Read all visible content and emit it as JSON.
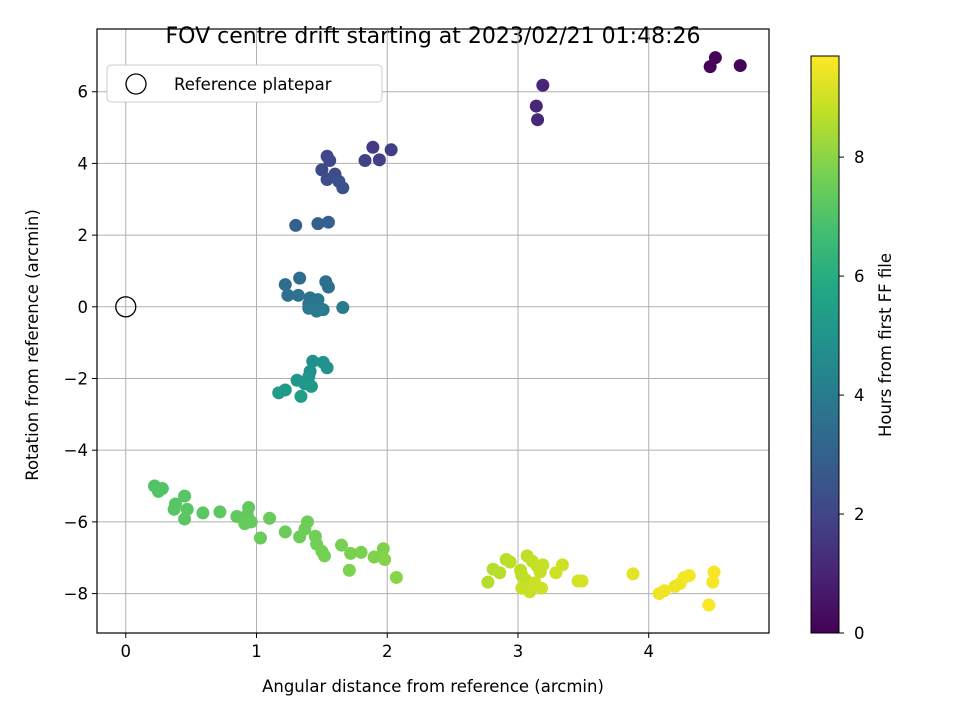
{
  "chart_data": {
    "type": "scatter",
    "title": "FOV centre drift starting at 2023/02/21 01:48:26",
    "xlabel": "Angular distance from reference (arcmin)",
    "ylabel": "Rotation from reference (arcmin)",
    "xlim": [
      -0.22,
      4.92
    ],
    "ylim": [
      -9.1,
      7.75
    ],
    "xticks": [
      0,
      1,
      2,
      3,
      4
    ],
    "yticks": [
      -8,
      -6,
      -4,
      -2,
      0,
      2,
      4,
      6
    ],
    "grid": true,
    "legend": {
      "placement": "top-left",
      "entries": [
        "Reference platepar"
      ]
    },
    "colorbar": {
      "label": "Hours from first FF file",
      "ticks": [
        0,
        2,
        4,
        6,
        8
      ],
      "range": [
        0,
        9.7
      ],
      "colormap": "viridis"
    },
    "reference_point": {
      "x": 0,
      "y": 0
    },
    "points": [
      {
        "x": 4.47,
        "y": 6.7,
        "h": 0.05
      },
      {
        "x": 4.51,
        "y": 6.95,
        "h": 0.08
      },
      {
        "x": 4.7,
        "y": 6.73,
        "h": 0.12
      },
      {
        "x": 3.19,
        "y": 6.18,
        "h": 1.0
      },
      {
        "x": 3.14,
        "y": 5.6,
        "h": 1.05
      },
      {
        "x": 3.15,
        "y": 5.22,
        "h": 1.1
      },
      {
        "x": 1.89,
        "y": 4.45,
        "h": 1.7
      },
      {
        "x": 2.03,
        "y": 4.38,
        "h": 1.75
      },
      {
        "x": 1.94,
        "y": 4.1,
        "h": 1.8
      },
      {
        "x": 1.83,
        "y": 4.08,
        "h": 1.85
      },
      {
        "x": 1.54,
        "y": 4.2,
        "h": 2.05
      },
      {
        "x": 1.56,
        "y": 4.08,
        "h": 2.1
      },
      {
        "x": 1.5,
        "y": 3.82,
        "h": 2.15
      },
      {
        "x": 1.6,
        "y": 3.7,
        "h": 2.2
      },
      {
        "x": 1.54,
        "y": 3.55,
        "h": 2.3
      },
      {
        "x": 1.63,
        "y": 3.5,
        "h": 2.4
      },
      {
        "x": 1.66,
        "y": 3.32,
        "h": 2.45
      },
      {
        "x": 1.3,
        "y": 2.27,
        "h": 2.9
      },
      {
        "x": 1.47,
        "y": 2.32,
        "h": 2.95
      },
      {
        "x": 1.55,
        "y": 2.36,
        "h": 3.0
      },
      {
        "x": 1.33,
        "y": 0.8,
        "h": 3.4
      },
      {
        "x": 1.22,
        "y": 0.62,
        "h": 3.45
      },
      {
        "x": 1.53,
        "y": 0.7,
        "h": 3.5
      },
      {
        "x": 1.55,
        "y": 0.55,
        "h": 3.55
      },
      {
        "x": 1.24,
        "y": 0.32,
        "h": 3.6
      },
      {
        "x": 1.32,
        "y": 0.32,
        "h": 3.65
      },
      {
        "x": 1.41,
        "y": 0.25,
        "h": 3.7
      },
      {
        "x": 1.47,
        "y": 0.2,
        "h": 3.75
      },
      {
        "x": 1.4,
        "y": 0.08,
        "h": 3.8
      },
      {
        "x": 1.45,
        "y": 0.0,
        "h": 3.85
      },
      {
        "x": 1.4,
        "y": -0.04,
        "h": 3.9
      },
      {
        "x": 1.51,
        "y": -0.08,
        "h": 3.95
      },
      {
        "x": 1.46,
        "y": -0.12,
        "h": 4.0
      },
      {
        "x": 1.66,
        "y": -0.02,
        "h": 4.05
      },
      {
        "x": 1.43,
        "y": -1.52,
        "h": 4.8
      },
      {
        "x": 1.51,
        "y": -1.55,
        "h": 4.85
      },
      {
        "x": 1.54,
        "y": -1.7,
        "h": 4.9
      },
      {
        "x": 1.41,
        "y": -1.8,
        "h": 4.95
      },
      {
        "x": 1.4,
        "y": -1.95,
        "h": 5.0
      },
      {
        "x": 1.31,
        "y": -2.05,
        "h": 5.1
      },
      {
        "x": 1.37,
        "y": -2.15,
        "h": 5.15
      },
      {
        "x": 1.42,
        "y": -2.22,
        "h": 5.2
      },
      {
        "x": 1.22,
        "y": -2.32,
        "h": 5.25
      },
      {
        "x": 1.17,
        "y": -2.4,
        "h": 5.3
      },
      {
        "x": 1.34,
        "y": -2.5,
        "h": 5.35
      },
      {
        "x": 0.22,
        "y": -5.0,
        "h": 7.0
      },
      {
        "x": 0.28,
        "y": -5.07,
        "h": 7.05
      },
      {
        "x": 0.25,
        "y": -5.15,
        "h": 7.05
      },
      {
        "x": 0.45,
        "y": -5.28,
        "h": 7.1
      },
      {
        "x": 0.38,
        "y": -5.5,
        "h": 7.1
      },
      {
        "x": 0.37,
        "y": -5.65,
        "h": 7.15
      },
      {
        "x": 0.47,
        "y": -5.65,
        "h": 7.15
      },
      {
        "x": 0.45,
        "y": -5.92,
        "h": 7.2
      },
      {
        "x": 0.59,
        "y": -5.75,
        "h": 7.2
      },
      {
        "x": 0.72,
        "y": -5.72,
        "h": 7.25
      },
      {
        "x": 0.85,
        "y": -5.85,
        "h": 7.3
      },
      {
        "x": 0.94,
        "y": -5.6,
        "h": 7.3
      },
      {
        "x": 0.93,
        "y": -5.8,
        "h": 7.35
      },
      {
        "x": 0.9,
        "y": -5.9,
        "h": 7.35
      },
      {
        "x": 0.96,
        "y": -6.0,
        "h": 7.4
      },
      {
        "x": 0.91,
        "y": -6.05,
        "h": 7.4
      },
      {
        "x": 1.1,
        "y": -5.9,
        "h": 7.45
      },
      {
        "x": 1.03,
        "y": -6.45,
        "h": 7.45
      },
      {
        "x": 1.22,
        "y": -6.28,
        "h": 7.5
      },
      {
        "x": 1.33,
        "y": -6.42,
        "h": 7.5
      },
      {
        "x": 1.39,
        "y": -6.0,
        "h": 7.55
      },
      {
        "x": 1.37,
        "y": -6.2,
        "h": 7.55
      },
      {
        "x": 1.45,
        "y": -6.4,
        "h": 7.6
      },
      {
        "x": 1.46,
        "y": -6.62,
        "h": 7.6
      },
      {
        "x": 1.5,
        "y": -6.82,
        "h": 7.65
      },
      {
        "x": 1.52,
        "y": -6.95,
        "h": 7.65
      },
      {
        "x": 1.65,
        "y": -6.65,
        "h": 7.7
      },
      {
        "x": 1.72,
        "y": -6.88,
        "h": 7.75
      },
      {
        "x": 1.8,
        "y": -6.85,
        "h": 7.75
      },
      {
        "x": 1.71,
        "y": -7.35,
        "h": 7.8
      },
      {
        "x": 1.9,
        "y": -6.98,
        "h": 7.85
      },
      {
        "x": 1.97,
        "y": -6.75,
        "h": 7.85
      },
      {
        "x": 1.98,
        "y": -7.05,
        "h": 7.9
      },
      {
        "x": 2.07,
        "y": -7.55,
        "h": 7.95
      },
      {
        "x": 2.77,
        "y": -7.68,
        "h": 8.6
      },
      {
        "x": 2.81,
        "y": -7.32,
        "h": 8.6
      },
      {
        "x": 2.86,
        "y": -7.42,
        "h": 8.65
      },
      {
        "x": 2.91,
        "y": -7.05,
        "h": 8.65
      },
      {
        "x": 2.94,
        "y": -7.12,
        "h": 8.7
      },
      {
        "x": 3.02,
        "y": -7.35,
        "h": 8.7
      },
      {
        "x": 3.03,
        "y": -7.5,
        "h": 8.75
      },
      {
        "x": 3.06,
        "y": -7.62,
        "h": 8.75
      },
      {
        "x": 3.07,
        "y": -6.95,
        "h": 8.75
      },
      {
        "x": 3.11,
        "y": -7.1,
        "h": 8.8
      },
      {
        "x": 3.15,
        "y": -7.25,
        "h": 8.8
      },
      {
        "x": 3.17,
        "y": -7.4,
        "h": 8.85
      },
      {
        "x": 3.19,
        "y": -7.2,
        "h": 8.85
      },
      {
        "x": 3.03,
        "y": -7.85,
        "h": 8.9
      },
      {
        "x": 3.09,
        "y": -7.95,
        "h": 8.9
      },
      {
        "x": 3.13,
        "y": -7.7,
        "h": 8.95
      },
      {
        "x": 3.18,
        "y": -7.85,
        "h": 8.95
      },
      {
        "x": 3.29,
        "y": -7.42,
        "h": 9.0
      },
      {
        "x": 3.34,
        "y": -7.2,
        "h": 9.0
      },
      {
        "x": 3.46,
        "y": -7.65,
        "h": 9.05
      },
      {
        "x": 3.49,
        "y": -7.65,
        "h": 9.1
      },
      {
        "x": 3.88,
        "y": -7.45,
        "h": 9.3
      },
      {
        "x": 4.08,
        "y": -8.0,
        "h": 9.45
      },
      {
        "x": 4.12,
        "y": -7.92,
        "h": 9.45
      },
      {
        "x": 4.2,
        "y": -7.8,
        "h": 9.5
      },
      {
        "x": 4.24,
        "y": -7.72,
        "h": 9.5
      },
      {
        "x": 4.27,
        "y": -7.55,
        "h": 9.55
      },
      {
        "x": 4.31,
        "y": -7.5,
        "h": 9.55
      },
      {
        "x": 4.5,
        "y": -7.4,
        "h": 9.6
      },
      {
        "x": 4.49,
        "y": -7.68,
        "h": 9.6
      },
      {
        "x": 4.46,
        "y": -8.32,
        "h": 9.65
      }
    ]
  }
}
